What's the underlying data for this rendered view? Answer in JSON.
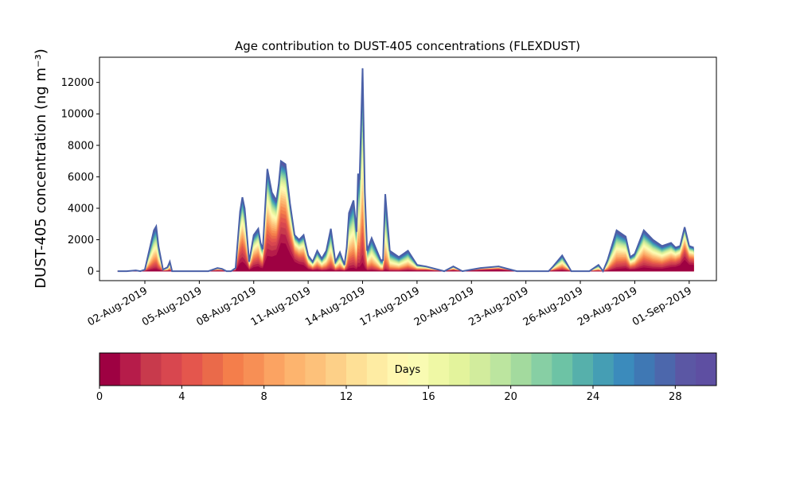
{
  "chart_data": {
    "type": "area",
    "title": "Age contribution to DUST-405 concentrations (FLEXDUST)",
    "ylabel": "DUST-405 concentration (ng m⁻³)",
    "xlabel": "",
    "ylim": [
      -600,
      13600
    ],
    "xlim": [
      "2019-07-30T12:00",
      "2019-09-02T12:00"
    ],
    "yticks": [
      0,
      2000,
      4000,
      6000,
      8000,
      10000,
      12000
    ],
    "ytick_labels": [
      "0",
      "2000",
      "4000",
      "6000",
      "8000",
      "10000",
      "12000"
    ],
    "xticks": [
      "2019-08-02",
      "2019-08-05",
      "2019-08-08",
      "2019-08-11",
      "2019-08-14",
      "2019-08-17",
      "2019-08-20",
      "2019-08-23",
      "2019-08-26",
      "2019-08-29",
      "2019-09-01"
    ],
    "xtick_labels": [
      "02-Aug-2019",
      "05-Aug-2019",
      "08-Aug-2019",
      "11-Aug-2019",
      "14-Aug-2019",
      "17-Aug-2019",
      "20-Aug-2019",
      "23-Aug-2019",
      "26-Aug-2019",
      "29-Aug-2019",
      "01-Sep-2019"
    ],
    "grid": false,
    "total_concentration": {
      "x": [
        "2019-07-31T12:00",
        "2019-08-01T00:00",
        "2019-08-01T12:00",
        "2019-08-01T18:00",
        "2019-08-02T00:00",
        "2019-08-02T12:00",
        "2019-08-02T15:00",
        "2019-08-02T18:00",
        "2019-08-03T00:00",
        "2019-08-03T06:00",
        "2019-08-03T09:00",
        "2019-08-03T12:00",
        "2019-08-03T18:00",
        "2019-08-04T12:00",
        "2019-08-05T12:00",
        "2019-08-06T00:00",
        "2019-08-06T06:00",
        "2019-08-06T12:00",
        "2019-08-06T18:00",
        "2019-08-07T00:00",
        "2019-08-07T06:00",
        "2019-08-07T09:00",
        "2019-08-07T12:00",
        "2019-08-07T18:00",
        "2019-08-08T00:00",
        "2019-08-08T06:00",
        "2019-08-08T09:00",
        "2019-08-08T12:00",
        "2019-08-08T18:00",
        "2019-08-09T00:00",
        "2019-08-09T06:00",
        "2019-08-09T09:00",
        "2019-08-09T12:00",
        "2019-08-09T18:00",
        "2019-08-10T00:00",
        "2019-08-10T06:00",
        "2019-08-10T12:00",
        "2019-08-10T18:00",
        "2019-08-11T00:00",
        "2019-08-11T06:00",
        "2019-08-11T12:00",
        "2019-08-11T18:00",
        "2019-08-12T00:00",
        "2019-08-12T06:00",
        "2019-08-12T12:00",
        "2019-08-12T18:00",
        "2019-08-13T00:00",
        "2019-08-13T03:00",
        "2019-08-13T06:00",
        "2019-08-13T12:00",
        "2019-08-13T16:00",
        "2019-08-13T18:00",
        "2019-08-13T20:00",
        "2019-08-14T00:00",
        "2019-08-14T03:00",
        "2019-08-14T06:00",
        "2019-08-14T12:00",
        "2019-08-15T00:00",
        "2019-08-15T03:00",
        "2019-08-15T06:00",
        "2019-08-15T12:00",
        "2019-08-16T00:00",
        "2019-08-16T12:00",
        "2019-08-17T00:00",
        "2019-08-17T12:00",
        "2019-08-18T12:00",
        "2019-08-19T00:00",
        "2019-08-19T12:00",
        "2019-08-20T12:00",
        "2019-08-21T12:00",
        "2019-08-22T12:00",
        "2019-08-23T12:00",
        "2019-08-24T00:00",
        "2019-08-24T06:00",
        "2019-08-24T12:00",
        "2019-08-25T00:00",
        "2019-08-25T12:00",
        "2019-08-26T00:00",
        "2019-08-26T06:00",
        "2019-08-26T12:00",
        "2019-08-27T00:00",
        "2019-08-27T06:00",
        "2019-08-27T12:00",
        "2019-08-28T00:00",
        "2019-08-28T12:00",
        "2019-08-28T18:00",
        "2019-08-29T00:00",
        "2019-08-29T12:00",
        "2019-08-30T00:00",
        "2019-08-30T12:00",
        "2019-08-31T00:00",
        "2019-08-31T06:00",
        "2019-08-31T12:00",
        "2019-08-31T18:00",
        "2019-09-01T00:00",
        "2019-09-01T06:00"
      ],
      "y": [
        0,
        0,
        50,
        0,
        100,
        2600,
        2850,
        1600,
        100,
        250,
        600,
        0,
        0,
        0,
        0,
        200,
        150,
        0,
        0,
        200,
        3800,
        4700,
        4000,
        600,
        2300,
        2700,
        1800,
        1400,
        6500,
        5000,
        4500,
        5500,
        7000,
        6800,
        4300,
        2300,
        2000,
        2300,
        1000,
        600,
        1300,
        800,
        1300,
        2700,
        600,
        1200,
        400,
        1500,
        3700,
        4500,
        2500,
        6200,
        5800,
        12900,
        5000,
        1300,
        2100,
        700,
        700,
        4900,
        1300,
        900,
        1300,
        400,
        300,
        0,
        300,
        0,
        200,
        300,
        0,
        0,
        0,
        0,
        300,
        1000,
        0,
        0,
        0,
        0,
        400,
        0,
        700,
        2600,
        2200,
        900,
        1100,
        2600,
        2000,
        1600,
        1800,
        1500,
        1600,
        2800,
        1600,
        1500
      ]
    },
    "colorbar": {
      "label": "Days",
      "range": [
        0,
        30
      ],
      "ticks": [
        0,
        4,
        8,
        12,
        16,
        20,
        24,
        28
      ],
      "tick_labels": [
        "0",
        "4",
        "8",
        "12",
        "16",
        "20",
        "24",
        "28"
      ],
      "colormap": "Spectral",
      "colors": [
        "#9e0142",
        "#b61c4a",
        "#c83a4c",
        "#d8474f",
        "#e4564d",
        "#ea6a4a",
        "#f47e4b",
        "#f78f55",
        "#fba362",
        "#fdb46e",
        "#fdc17a",
        "#fdd088",
        "#fee096",
        "#feeca3",
        "#fff7b0",
        "#f9fbb2",
        "#eff8a5",
        "#e3f39c",
        "#d2ec9d",
        "#bce59f",
        "#a3da9e",
        "#87cfa4",
        "#6dc3a5",
        "#56b0ab",
        "#459eb4",
        "#3b8bbc",
        "#3f78b4",
        "#4c67ac",
        "#5b57a4",
        "#5e4fa2"
      ],
      "orientation": "horizontal",
      "position": "bottom"
    },
    "line_color": "#4a60a8"
  }
}
